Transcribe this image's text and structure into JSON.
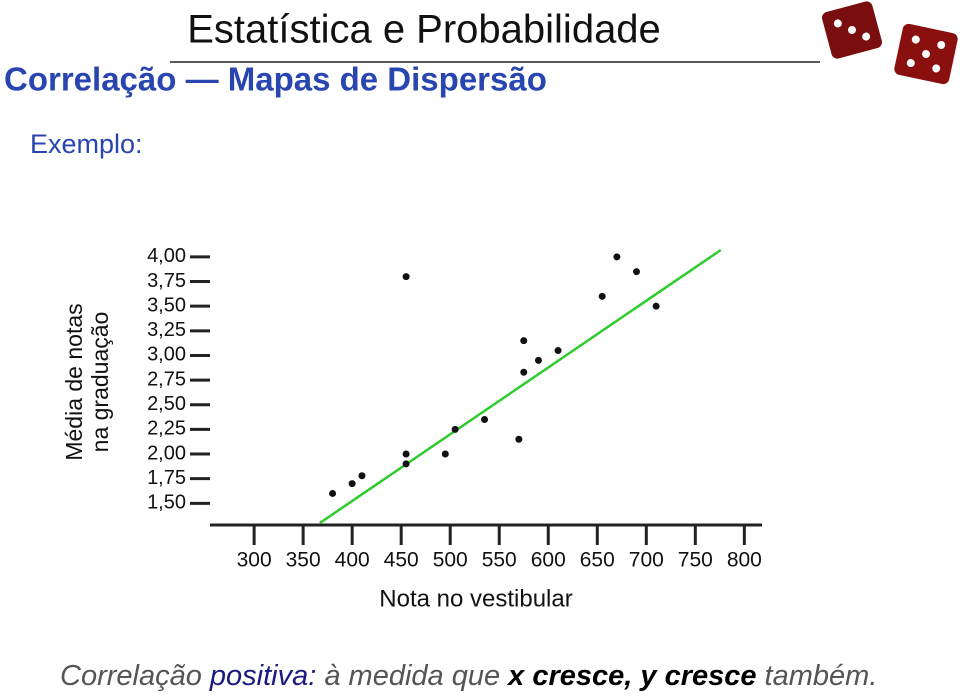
{
  "header": {
    "title": "Estatística e Probabilidade",
    "subtitle": "Correlação — Mapas de Dispersão"
  },
  "example": "Exemplo:",
  "chart_data": {
    "type": "scatter",
    "ylabel": [
      "Média de notas",
      "na graduação"
    ],
    "xlabel": "Nota no vestibular",
    "x": [
      380,
      400,
      410,
      455,
      455,
      455,
      495,
      505,
      535,
      570,
      575,
      575,
      590,
      610,
      655,
      670,
      690,
      710
    ],
    "y": [
      1.6,
      1.7,
      1.78,
      3.8,
      2.0,
      1.9,
      2.0,
      2.25,
      2.35,
      2.15,
      3.15,
      2.83,
      2.95,
      3.05,
      3.6,
      4.0,
      3.85,
      3.5
    ],
    "color": "#111111",
    "trendline": {
      "x": [
        367,
        776
      ],
      "y": [
        1.3,
        4.07
      ],
      "color": "#2ecc2e"
    },
    "xlim": [
      255,
      818
    ],
    "ylim": [
      1.28,
      4.07
    ],
    "xticks": [
      300,
      350,
      400,
      450,
      500,
      550,
      600,
      650,
      700,
      750,
      800
    ],
    "yticks": [
      {
        "value": 4.0,
        "label": "4,00"
      },
      {
        "value": 3.75,
        "label": "3,75"
      },
      {
        "value": 3.5,
        "label": "3,50"
      },
      {
        "value": 3.25,
        "label": "3,25"
      },
      {
        "value": 3.0,
        "label": "3,00"
      },
      {
        "value": 2.75,
        "label": "2,75"
      },
      {
        "value": 2.5,
        "label": "2,50"
      },
      {
        "value": 2.25,
        "label": "2,25"
      },
      {
        "value": 2.0,
        "label": "2,00"
      },
      {
        "value": 1.75,
        "label": "1,75"
      },
      {
        "value": 1.5,
        "label": "1,50"
      }
    ]
  },
  "footer": {
    "parts": [
      "Correlação ",
      "positiva:",
      " à medida que ",
      "x cresce, y cresce",
      " também."
    ]
  }
}
